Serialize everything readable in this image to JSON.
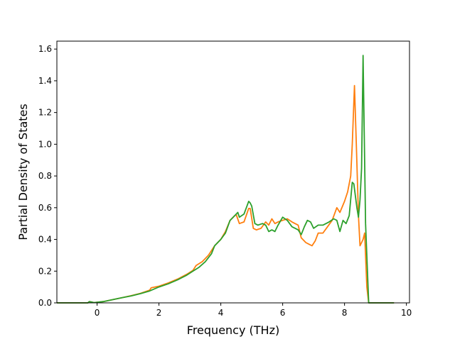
{
  "chart_data": {
    "type": "line",
    "title": "",
    "xlabel": "Frequency (THz)",
    "ylabel": "Partial Density of States",
    "xlim": [
      -1.3,
      10.1
    ],
    "ylim": [
      0.0,
      1.65
    ],
    "xticks": [
      0,
      2,
      4,
      6,
      8,
      10
    ],
    "yticks": [
      0.0,
      0.2,
      0.4,
      0.6,
      0.8,
      1.0,
      1.2,
      1.4,
      1.6
    ],
    "xtick_labels": [
      "0",
      "2",
      "4",
      "6",
      "8",
      "10"
    ],
    "ytick_labels": [
      "0.0",
      "0.2",
      "0.4",
      "0.6",
      "0.8",
      "1.0",
      "1.2",
      "1.4",
      "1.6"
    ],
    "grid": false,
    "series": [
      {
        "color": "#ff7f0e",
        "points": [
          [
            -1.3,
            0
          ],
          [
            -0.3,
            0
          ],
          [
            -0.25,
            0.008
          ],
          [
            -0.1,
            0.002
          ],
          [
            0.2,
            0.008
          ],
          [
            0.5,
            0.02
          ],
          [
            0.8,
            0.032
          ],
          [
            1.1,
            0.045
          ],
          [
            1.4,
            0.06
          ],
          [
            1.7,
            0.08
          ],
          [
            1.75,
            0.095
          ],
          [
            2.0,
            0.105
          ],
          [
            2.3,
            0.125
          ],
          [
            2.6,
            0.15
          ],
          [
            2.9,
            0.18
          ],
          [
            3.1,
            0.205
          ],
          [
            3.2,
            0.235
          ],
          [
            3.4,
            0.26
          ],
          [
            3.6,
            0.3
          ],
          [
            3.8,
            0.36
          ],
          [
            4.0,
            0.4
          ],
          [
            4.15,
            0.45
          ],
          [
            4.3,
            0.52
          ],
          [
            4.45,
            0.55
          ],
          [
            4.5,
            0.555
          ],
          [
            4.6,
            0.5
          ],
          [
            4.75,
            0.51
          ],
          [
            4.9,
            0.595
          ],
          [
            4.95,
            0.595
          ],
          [
            5.05,
            0.47
          ],
          [
            5.15,
            0.46
          ],
          [
            5.3,
            0.47
          ],
          [
            5.45,
            0.51
          ],
          [
            5.55,
            0.49
          ],
          [
            5.65,
            0.53
          ],
          [
            5.75,
            0.5
          ],
          [
            5.85,
            0.51
          ],
          [
            6.0,
            0.52
          ],
          [
            6.15,
            0.53
          ],
          [
            6.3,
            0.51
          ],
          [
            6.5,
            0.49
          ],
          [
            6.6,
            0.41
          ],
          [
            6.75,
            0.38
          ],
          [
            6.85,
            0.37
          ],
          [
            6.95,
            0.36
          ],
          [
            7.05,
            0.39
          ],
          [
            7.15,
            0.44
          ],
          [
            7.3,
            0.44
          ],
          [
            7.45,
            0.48
          ],
          [
            7.6,
            0.52
          ],
          [
            7.75,
            0.6
          ],
          [
            7.85,
            0.57
          ],
          [
            8.0,
            0.64
          ],
          [
            8.1,
            0.7
          ],
          [
            8.2,
            0.8
          ],
          [
            8.25,
            1.0
          ],
          [
            8.32,
            1.37
          ],
          [
            8.38,
            1.0
          ],
          [
            8.45,
            0.55
          ],
          [
            8.5,
            0.36
          ],
          [
            8.6,
            0.4
          ],
          [
            8.65,
            0.44
          ],
          [
            8.72,
            0.1
          ],
          [
            8.78,
            0
          ],
          [
            9.6,
            0
          ]
        ]
      },
      {
        "color": "#2ca02c",
        "points": [
          [
            -1.3,
            0
          ],
          [
            -0.3,
            0
          ],
          [
            -0.25,
            0.008
          ],
          [
            -0.1,
            0.002
          ],
          [
            0.2,
            0.008
          ],
          [
            0.5,
            0.02
          ],
          [
            0.8,
            0.032
          ],
          [
            1.1,
            0.044
          ],
          [
            1.4,
            0.058
          ],
          [
            1.7,
            0.075
          ],
          [
            2.0,
            0.1
          ],
          [
            2.3,
            0.12
          ],
          [
            2.6,
            0.145
          ],
          [
            2.9,
            0.175
          ],
          [
            3.1,
            0.2
          ],
          [
            3.3,
            0.225
          ],
          [
            3.5,
            0.26
          ],
          [
            3.7,
            0.31
          ],
          [
            3.8,
            0.36
          ],
          [
            4.0,
            0.4
          ],
          [
            4.15,
            0.44
          ],
          [
            4.3,
            0.52
          ],
          [
            4.45,
            0.55
          ],
          [
            4.55,
            0.57
          ],
          [
            4.6,
            0.54
          ],
          [
            4.75,
            0.56
          ],
          [
            4.9,
            0.64
          ],
          [
            4.95,
            0.63
          ],
          [
            5.0,
            0.61
          ],
          [
            5.1,
            0.5
          ],
          [
            5.2,
            0.49
          ],
          [
            5.35,
            0.5
          ],
          [
            5.45,
            0.49
          ],
          [
            5.55,
            0.45
          ],
          [
            5.65,
            0.46
          ],
          [
            5.75,
            0.45
          ],
          [
            5.85,
            0.49
          ],
          [
            6.0,
            0.54
          ],
          [
            6.15,
            0.52
          ],
          [
            6.3,
            0.48
          ],
          [
            6.5,
            0.46
          ],
          [
            6.6,
            0.43
          ],
          [
            6.7,
            0.48
          ],
          [
            6.8,
            0.52
          ],
          [
            6.9,
            0.51
          ],
          [
            7.0,
            0.47
          ],
          [
            7.15,
            0.49
          ],
          [
            7.3,
            0.49
          ],
          [
            7.5,
            0.51
          ],
          [
            7.65,
            0.53
          ],
          [
            7.75,
            0.52
          ],
          [
            7.85,
            0.45
          ],
          [
            7.95,
            0.52
          ],
          [
            8.05,
            0.5
          ],
          [
            8.15,
            0.55
          ],
          [
            8.25,
            0.76
          ],
          [
            8.3,
            0.75
          ],
          [
            8.4,
            0.6
          ],
          [
            8.45,
            0.54
          ],
          [
            8.5,
            0.65
          ],
          [
            8.55,
            0.85
          ],
          [
            8.6,
            1.56
          ],
          [
            8.68,
            0.5
          ],
          [
            8.78,
            0
          ],
          [
            9.6,
            0
          ]
        ]
      }
    ]
  }
}
